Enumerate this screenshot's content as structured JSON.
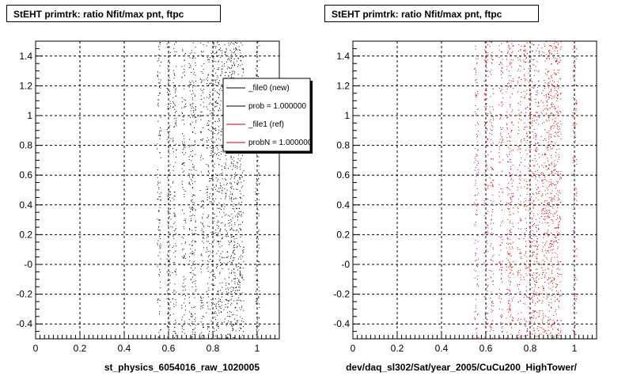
{
  "chart_data": [
    {
      "type": "scatter",
      "title": "StEHT primtrk: ratio Nfit/max pnt, ftpc",
      "xlabel": "st_physics_6054016_raw_1020005",
      "ylabel": "",
      "xlim": [
        0,
        1.1
      ],
      "ylim": [
        -0.5,
        1.5
      ],
      "xticks": [
        "0",
        "0.2",
        "0.4",
        "0.6",
        "0.8",
        "1"
      ],
      "yticks": [
        "-0.4",
        "-0.2",
        "-0",
        "0.2",
        "0.4",
        "0.6",
        "0.8",
        "1",
        "1.2",
        "1.4"
      ],
      "grid": true,
      "marker_color": "#000000",
      "x_bands": [
        0.556,
        0.6,
        0.625,
        0.667,
        0.7,
        0.714,
        0.75,
        0.778,
        0.8,
        0.818,
        0.833,
        0.857,
        0.875,
        0.889,
        0.9,
        0.917,
        0.929,
        1.0
      ],
      "legend": {
        "placement": "top-right",
        "entries": [
          {
            "label": "_file0 (new)",
            "color": "#000000"
          },
          {
            "label": "prob = 1.000000",
            "color": "#000000"
          },
          {
            "label": "_file1 (ref)",
            "color": "#cc0000"
          },
          {
            "label": "probN = 1.000000",
            "color": "#cc0000"
          }
        ]
      }
    },
    {
      "type": "scatter",
      "title": "StEHT primtrk: ratio Nfit/max pnt, ftpc",
      "xlabel": "dev/daq_sl302/Sat/year_2005/CuCu200_HighTower/",
      "ylabel": "",
      "xlim": [
        0,
        1.1
      ],
      "ylim": [
        -0.5,
        1.5
      ],
      "xticks": [
        "0",
        "0.2",
        "0.4",
        "0.6",
        "0.8",
        "1"
      ],
      "yticks": [
        "-0.4",
        "-0.2",
        "-0",
        "0.2",
        "0.4",
        "0.6",
        "0.8",
        "1",
        "1.2",
        "1.4"
      ],
      "grid": true,
      "marker_color": "#dd0000",
      "x_bands": [
        0.556,
        0.6,
        0.625,
        0.667,
        0.7,
        0.714,
        0.75,
        0.778,
        0.8,
        0.818,
        0.833,
        0.857,
        0.875,
        0.889,
        0.9,
        0.917,
        0.929,
        1.0
      ]
    }
  ]
}
